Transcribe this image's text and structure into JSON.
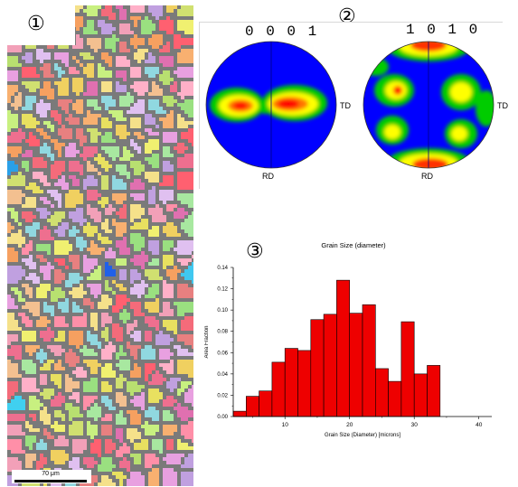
{
  "labels": {
    "panel1": "①",
    "panel2": "②",
    "panel3": "③"
  },
  "micrograph": {
    "scale_label": "70 μm"
  },
  "pole_figures": [
    {
      "title": "0 0 0 1",
      "rd": "RD",
      "td": "TD"
    },
    {
      "title": "1 0 1 0",
      "rd": "RD",
      "td": "TD"
    }
  ],
  "colors": {
    "bar": "#ee0000",
    "pf_background": "#0000ff",
    "pf_low": "#00dd00",
    "pf_mid": "#ffff00",
    "pf_high": "#ff0000"
  },
  "chart_data": {
    "type": "bar",
    "title": "Grain Size (diameter)",
    "xlabel": "Grain Size (Diameter) [microns]",
    "ylabel": "Area Fraction",
    "xlim": [
      2,
      42
    ],
    "ylim": [
      0,
      0.14
    ],
    "xticks": [
      10,
      20,
      30,
      40
    ],
    "yticks": [
      "0.00",
      "0.02",
      "0.04",
      "0.06",
      "0.08",
      "0.10",
      "0.12",
      "0.14"
    ],
    "bin_width": 2,
    "bin_starts": [
      2,
      4,
      6,
      8,
      10,
      12,
      14,
      16,
      18,
      20,
      22,
      24,
      26,
      28,
      30,
      32,
      34
    ],
    "values": [
      0.005,
      0.019,
      0.024,
      0.051,
      0.064,
      0.062,
      0.091,
      0.096,
      0.128,
      0.097,
      0.105,
      0.045,
      0.033,
      0.089,
      0.04,
      0.048,
      0.0
    ]
  }
}
